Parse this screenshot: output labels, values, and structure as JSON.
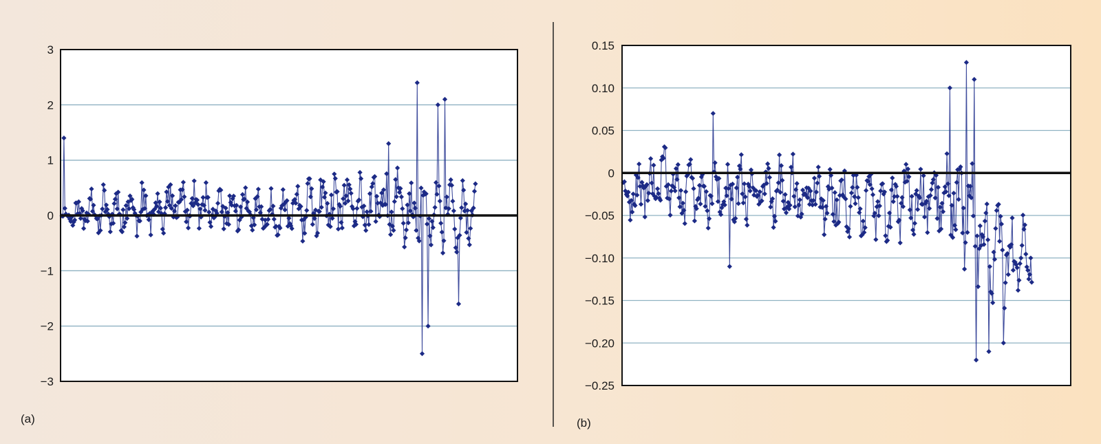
{
  "colors": {
    "series": "#1f2e8c",
    "marker": "#1c2a86",
    "zero_line": "#111111",
    "grid": "#8fb2c2",
    "frame": "#111111",
    "plot_bg": "#ffffff",
    "divider": "#222222"
  },
  "chart_data": [
    {
      "type": "line",
      "panel_label": "(a)",
      "title": "",
      "xlabel": "",
      "ylabel": "",
      "ylim": [
        -3,
        3
      ],
      "yticks": [
        3,
        2,
        1,
        0,
        -1,
        -2,
        -3
      ],
      "ytick_labels": [
        "3",
        "2",
        "1",
        "0",
        "−1",
        "−2",
        "−3"
      ],
      "grid": true,
      "legend": "none",
      "x_extent_fraction": 0.905,
      "series": [
        {
          "name": "",
          "x_count": 420,
          "envelope": [
            [
              0.0,
              0.0,
              1.4,
              0.1,
              -0.1
            ],
            [
              0.1,
              0.1,
              1.1,
              0.35,
              -0.4
            ],
            [
              0.2,
              0.1,
              0.9,
              0.35,
              -0.6
            ],
            [
              0.3,
              0.2,
              0.9,
              0.3,
              -0.5
            ],
            [
              0.4,
              0.1,
              0.8,
              0.3,
              -0.9
            ],
            [
              0.5,
              0.05,
              0.8,
              0.3,
              -1.0
            ],
            [
              0.6,
              0.1,
              0.8,
              0.4,
              -0.9
            ],
            [
              0.7,
              0.2,
              1.1,
              0.45,
              -0.6
            ],
            [
              0.8,
              0.2,
              1.3,
              0.5,
              -1.2
            ],
            [
              0.85,
              0.0,
              2.4,
              0.6,
              -2.5
            ],
            [
              0.9,
              0.0,
              2.1,
              0.55,
              -1.6
            ],
            [
              0.95,
              0.0,
              0.8,
              0.5,
              -1.2
            ],
            [
              1.0,
              0.0,
              0.6,
              0.4,
              -0.5
            ]
          ],
          "spikes": [
            [
              0.005,
              1.4
            ],
            [
              0.86,
              2.4
            ],
            [
              0.925,
              2.1
            ],
            [
              0.91,
              2.0
            ],
            [
              0.87,
              -2.5
            ],
            [
              0.885,
              -2.0
            ],
            [
              0.96,
              -1.6
            ],
            [
              0.79,
              1.3
            ]
          ]
        }
      ]
    },
    {
      "type": "line",
      "panel_label": "(b)",
      "title": "",
      "xlabel": "",
      "ylabel": "",
      "ylim": [
        -0.25,
        0.15
      ],
      "yticks": [
        0.15,
        0.1,
        0.05,
        0,
        -0.05,
        -0.1,
        -0.15,
        -0.2,
        -0.25
      ],
      "ytick_labels": [
        "0.15",
        "0.10",
        "0.05",
        "0",
        "−0.05",
        "−0.10",
        "−0.15",
        "−0.20",
        "−0.25"
      ],
      "grid": true,
      "legend": "none",
      "x_extent_fraction": 0.91,
      "series": [
        {
          "name": "",
          "x_count": 420,
          "envelope": [
            [
              0.0,
              -0.03,
              0.0,
              0.02,
              -0.07
            ],
            [
              0.1,
              -0.01,
              0.05,
              0.03,
              -0.08
            ],
            [
              0.2,
              -0.03,
              0.07,
              0.03,
              -0.11
            ],
            [
              0.3,
              -0.02,
              0.06,
              0.03,
              -0.09
            ],
            [
              0.4,
              -0.02,
              0.04,
              0.03,
              -0.09
            ],
            [
              0.5,
              -0.03,
              0.04,
              0.03,
              -0.1
            ],
            [
              0.6,
              -0.04,
              0.03,
              0.03,
              -0.12
            ],
            [
              0.7,
              -0.03,
              0.05,
              0.035,
              -0.13
            ],
            [
              0.78,
              -0.02,
              0.13,
              0.04,
              -0.15
            ],
            [
              0.85,
              -0.05,
              0.12,
              0.05,
              -0.22
            ],
            [
              0.9,
              -0.09,
              0.0,
              0.05,
              -0.21
            ],
            [
              0.95,
              -0.1,
              -0.03,
              0.04,
              -0.2
            ],
            [
              1.0,
              -0.1,
              -0.04,
              0.03,
              -0.18
            ]
          ],
          "spikes": [
            [
              0.84,
              0.13
            ],
            [
              0.8,
              0.1
            ],
            [
              0.86,
              0.11
            ],
            [
              0.22,
              0.07
            ],
            [
              0.865,
              -0.22
            ],
            [
              0.895,
              -0.21
            ],
            [
              0.93,
              -0.2
            ],
            [
              0.26,
              -0.11
            ]
          ]
        }
      ]
    }
  ]
}
